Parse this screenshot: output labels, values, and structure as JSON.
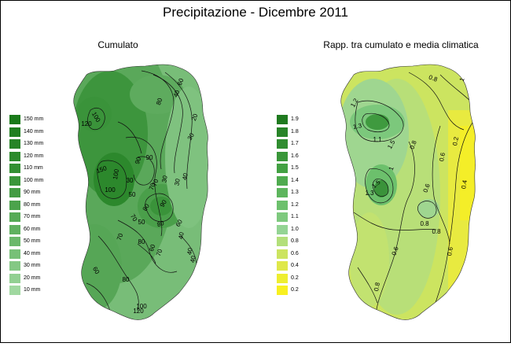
{
  "title": "Precipitazione - Dicembre 2011",
  "left_map": {
    "subtitle": "Cumulato",
    "legend": [
      {
        "label": "150 mm",
        "color": "#1a7a1a"
      },
      {
        "label": "140 mm",
        "color": "#207f20"
      },
      {
        "label": "130 mm",
        "color": "#268426"
      },
      {
        "label": "120 mm",
        "color": "#2c8a2c"
      },
      {
        "label": "110 mm",
        "color": "#339033"
      },
      {
        "label": "100 mm",
        "color": "#3a963a"
      },
      {
        "label": "90 mm",
        "color": "#439c43"
      },
      {
        "label": "80 mm",
        "color": "#4ca34c"
      },
      {
        "label": "70 mm",
        "color": "#56aa56"
      },
      {
        "label": "60 mm",
        "color": "#60b160"
      },
      {
        "label": "50 mm",
        "color": "#6bb86b"
      },
      {
        "label": "40 mm",
        "color": "#77c077"
      },
      {
        "label": "30 mm",
        "color": "#84c884"
      },
      {
        "label": "20 mm",
        "color": "#92d092"
      },
      {
        "label": "10 mm",
        "color": "#a0d8a0"
      }
    ],
    "contour_labels": [
      "60",
      "80",
      "40",
      "30",
      "100",
      "20",
      "120",
      "90",
      "150",
      "90",
      "100",
      "70",
      "30",
      "40",
      "30",
      "30",
      "100",
      "70",
      "50",
      "80",
      "90",
      "80",
      "60",
      "70",
      "40",
      "70",
      "60",
      "70",
      "80",
      "60",
      "80",
      "100",
      "120",
      "40",
      "40",
      "50"
    ]
  },
  "right_map": {
    "subtitle": "Rapp. tra cumulato e media climatica",
    "legend": [
      {
        "label": "1.9",
        "color": "#1f7a1f"
      },
      {
        "label": "1.8",
        "color": "#288428"
      },
      {
        "label": "1.7",
        "color": "#308d30"
      },
      {
        "label": "1.6",
        "color": "#399739"
      },
      {
        "label": "1.5",
        "color": "#43a143"
      },
      {
        "label": "1.4",
        "color": "#4fab4f"
      },
      {
        "label": "1.3",
        "color": "#5db55d"
      },
      {
        "label": "1.2",
        "color": "#6cc06c"
      },
      {
        "label": "1.1",
        "color": "#7ec97e"
      },
      {
        "label": "1.0",
        "color": "#94d494"
      },
      {
        "label": "0.8",
        "color": "#b3df7a"
      },
      {
        "label": "0.6",
        "color": "#cce460"
      },
      {
        "label": "0.4",
        "color": "#dfe84a"
      },
      {
        "label": "0.2",
        "color": "#eeee30"
      },
      {
        "label": "0.2",
        "color": "#f8f020"
      }
    ],
    "contour_labels": [
      "0.8",
      "1",
      "1.2",
      "1.3",
      "1.5",
      "1.1",
      "1",
      "0.8",
      "0.6",
      "0.8",
      "0.6",
      "0.4",
      "0.2",
      "1.5",
      "1.3",
      "0.8",
      "0.6",
      "0.8",
      "0.6"
    ]
  }
}
